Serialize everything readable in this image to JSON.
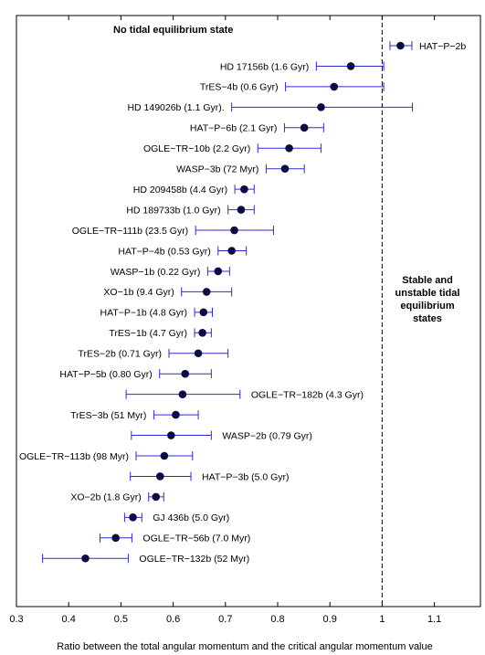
{
  "chart_data": {
    "type": "scatter",
    "xlabel": "Ratio between the total angular momentum and the critical angular momentum value",
    "xlim": [
      0.3,
      1.15
    ],
    "xticks": [
      0.3,
      0.4,
      0.5,
      0.6,
      0.7,
      0.8,
      0.9,
      1,
      1.1
    ],
    "reference_line_x": 1,
    "annotations": {
      "top_left": "No tidal equilibrium state",
      "right": [
        "Stable and",
        "unstable tidal",
        "equilibrium",
        "states"
      ]
    },
    "points": [
      {
        "label": "HAT−P−2b",
        "value": 1.035,
        "lo": 1.015,
        "hi": 1.057
      },
      {
        "label": "HD 17156b (1.6 Gyr)",
        "value": 0.94,
        "lo": 0.874,
        "hi": 1.003
      },
      {
        "label": "TrES−4b (0.6 Gyr)",
        "value": 0.908,
        "lo": 0.815,
        "hi": 1.003
      },
      {
        "label": "HD 149026b (1.1 Gyr).",
        "value": 0.883,
        "lo": 0.712,
        "hi": 1.058
      },
      {
        "label": "HAT−P−6b (2.1 Gyr)",
        "value": 0.851,
        "lo": 0.813,
        "hi": 0.888
      },
      {
        "label": "OGLE−TR−10b (2.2 Gyr)",
        "value": 0.822,
        "lo": 0.762,
        "hi": 0.883
      },
      {
        "label": "WASP−3b (72 Myr)",
        "value": 0.814,
        "lo": 0.778,
        "hi": 0.851
      },
      {
        "label": "HD 209458b (4.4 Gyr)",
        "value": 0.736,
        "lo": 0.718,
        "hi": 0.755
      },
      {
        "label": "HD 189733b (1.0 Gyr)",
        "value": 0.73,
        "lo": 0.705,
        "hi": 0.755
      },
      {
        "label": "OGLE−TR−111b (23.5 Gyr)",
        "value": 0.717,
        "lo": 0.643,
        "hi": 0.792
      },
      {
        "label": "HAT−P−4b (0.53 Gyr)",
        "value": 0.712,
        "lo": 0.686,
        "hi": 0.74
      },
      {
        "label": "WASP−1b (0.22 Gyr)",
        "value": 0.686,
        "lo": 0.666,
        "hi": 0.708
      },
      {
        "label": "XO−1b (9.4 Gyr)",
        "value": 0.664,
        "lo": 0.616,
        "hi": 0.712
      },
      {
        "label": "HAT−P−1b (4.8 Gyr)",
        "value": 0.658,
        "lo": 0.641,
        "hi": 0.675
      },
      {
        "label": "TrES−1b (4.7 Gyr)",
        "value": 0.656,
        "lo": 0.641,
        "hi": 0.673
      },
      {
        "label": "TrES−2b (0.71 Gyr)",
        "value": 0.648,
        "lo": 0.592,
        "hi": 0.705
      },
      {
        "label": "HAT−P−5b (0.80 Gyr)",
        "value": 0.623,
        "lo": 0.574,
        "hi": 0.673
      },
      {
        "label": "OGLE−TR−182b (4.3 Gyr)",
        "value": 0.618,
        "lo": 0.51,
        "hi": 0.728
      },
      {
        "label": "TrES−3b (51 Myr)",
        "value": 0.605,
        "lo": 0.563,
        "hi": 0.648
      },
      {
        "label": "WASP−2b (0.79 Gyr)",
        "value": 0.596,
        "lo": 0.52,
        "hi": 0.673
      },
      {
        "label": "OGLE−TR−113b (98 Myr)",
        "value": 0.583,
        "lo": 0.529,
        "hi": 0.637
      },
      {
        "label": "HAT−P−3b (5.0 Gyr)",
        "value": 0.575,
        "lo": 0.518,
        "hi": 0.634
      },
      {
        "label": "XO−2b (1.8 Gyr)",
        "value": 0.567,
        "lo": 0.553,
        "hi": 0.582
      },
      {
        "label": "GJ 436b (5.0 Gyr)",
        "value": 0.523,
        "lo": 0.507,
        "hi": 0.54
      },
      {
        "label": "OGLE−TR−56b (7.0 Myr)",
        "value": 0.49,
        "lo": 0.46,
        "hi": 0.521
      },
      {
        "label": "OGLE−TR−132b (52 Myr)",
        "value": 0.432,
        "lo": 0.35,
        "hi": 0.514
      }
    ]
  }
}
